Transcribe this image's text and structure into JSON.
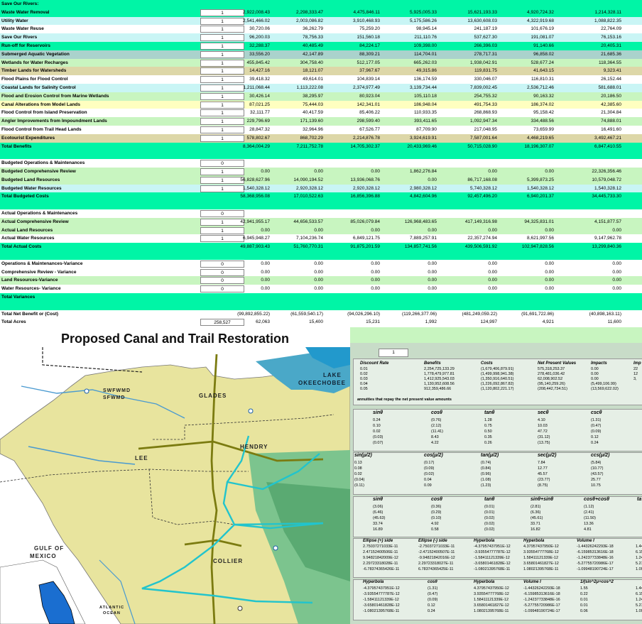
{
  "sheet": {
    "rows": [
      {
        "label": "Save Our Rivers:",
        "flag": "",
        "v": [
          "",
          "",
          "",
          "",
          "",
          "",
          ""
        ],
        "bg": "bg-green"
      },
      {
        "label": "Waste Water Removal",
        "flag": "1",
        "v": [
          "2,922,008.43",
          "2,298,333.47",
          "4,475,846.11",
          "5,925,005.33",
          "15,621,193.33",
          "4,920,724.32",
          "1,214,328.11"
        ],
        "bg": "bg-green"
      },
      {
        "label": "Utility Water",
        "flag": "1",
        "v": [
          "2,541,466.02",
          "2,003,086.82",
          "3,910,468.93",
          "5,175,586.26",
          "13,630,608.03",
          "4,322,919.68",
          "1,088,822.35"
        ],
        "bg": "bg-cyan"
      },
      {
        "label": "Waste Water Reuse",
        "flag": "1",
        "v": [
          "30,720.06",
          "36,262.79",
          "75,259.20",
          "98,945.14",
          "241,187.19",
          "101,676.19",
          "22,764.09"
        ],
        "bg": "bg-white"
      },
      {
        "label": "Save Our Rivers",
        "flag": "1",
        "v": [
          "96,200.03",
          "78,756.33",
          "151,560.18",
          "211,110.76",
          "537,627.30",
          "191,081.07",
          "76,153.16"
        ],
        "bg": "bg-cyan"
      },
      {
        "label": "Run-off for Reservoirs",
        "flag": "1",
        "v": [
          "32,288.37",
          "40,485.49",
          "84,224.17",
          "109,398.00",
          "266,396.03",
          "91,140.66",
          "20,405.31"
        ],
        "bg": "bg-green"
      },
      {
        "label": "Submerged Aquatic Vegetation",
        "flag": "1",
        "v": [
          "33,556.20",
          "42,147.89",
          "88,309.21",
          "114,704.01",
          "278,717.31",
          "96,858.02",
          "21,685.36"
        ],
        "bg": "bg-teal"
      },
      {
        "label": "Wetlands for Water Recharges",
        "flag": "1",
        "v": [
          "455,845.42",
          "304,758.40",
          "512,177.05",
          "665,262.03",
          "1,938,042.91",
          "528,677.24",
          "118,364.55"
        ],
        "bg": "bg-lgreen"
      },
      {
        "label": "Timber Lands for Watersheds",
        "flag": "1",
        "v": [
          "14,427.16",
          "18,121.07",
          "37,967.67",
          "49,315.86",
          "119,831.75",
          "41,643.15",
          "9,323.41"
        ],
        "bg": "bg-tan"
      },
      {
        "label": "Flood Plains for Flood Control",
        "flag": "1",
        "v": [
          "39,418.32",
          "49,614.01",
          "104,839.14",
          "136,174.59",
          "330,046.07",
          "116,810.31",
          "26,152.44"
        ],
        "bg": "bg-white"
      },
      {
        "label": "Coastal Lands for Salinity Control",
        "flag": "1",
        "v": [
          "1,211,068.44",
          "1,113,222.08",
          "2,374,977.49",
          "3,139,734.44",
          "7,839,002.45",
          "2,536,712.46",
          "581,688.01"
        ],
        "bg": "bg-cyan"
      },
      {
        "label": "Flood and Erosion Control from Marine Wetlands",
        "flag": "1",
        "v": [
          "30,426.14",
          "38,295.97",
          "80,923.04",
          "105,110.18",
          "254,755.32",
          "90,163.32",
          "20,186.50"
        ],
        "bg": "bg-lgreen"
      },
      {
        "label": "Canal Alterations from Model Lands",
        "flag": "1",
        "v": [
          "87,021.25",
          "75,444.03",
          "142,341.01",
          "186,948.04",
          "491,754.33",
          "186,374.02",
          "42,385.60"
        ],
        "bg": "bg-yellow"
      },
      {
        "label": "Flood Control from Island Preservation",
        "flag": "1",
        "v": [
          "32,111.77",
          "40,417.59",
          "85,406.22",
          "110,933.35",
          "268,868.93",
          "95,158.42",
          "21,304.84"
        ],
        "bg": "bg-white"
      },
      {
        "label": "Angler Improvements from Impoundment Lands",
        "flag": "1",
        "v": [
          "229,796.69",
          "171,139.60",
          "298,599.40",
          "393,411.65",
          "1,092,947.34",
          "334,488.56",
          "74,888.01"
        ],
        "bg": "bg-lgreen"
      },
      {
        "label": "Flood Control from Trail Head Lands",
        "flag": "1",
        "v": [
          "28,847.32",
          "32,964.96",
          "67,526.77",
          "87,709.90",
          "217,048.95",
          "73,659.99",
          "16,491.60"
        ],
        "bg": "bg-white"
      },
      {
        "label": "Ecotourist Expenditures",
        "flag": "1",
        "v": [
          "578,802.67",
          "868,702.29",
          "2,214,876.78",
          "3,924,619.91",
          "7,587,001.64",
          "4,468,219.65",
          "3,492,467.21"
        ],
        "bg": "bg-tan"
      },
      {
        "label": "Total Benefits",
        "flag": "",
        "v": [
          "8,364,004.29",
          "7,211,752.78",
          "14,705,302.37",
          "20,433,969.46",
          "50,715,028.90",
          "18,196,307.07",
          "6,847,410.55"
        ],
        "bg": "bg-green"
      },
      {
        "label": "",
        "flag": "",
        "v": [
          "",
          "",
          "",
          "",
          "",
          "",
          ""
        ],
        "bg": "bg-green"
      },
      {
        "label": "Budgeted Operations & Maintenances",
        "flag": "0",
        "v": [
          "",
          "",
          "",
          "",
          "",
          "",
          ""
        ],
        "bg": "bg-white"
      },
      {
        "label": "Budgeted Comprehensive Review",
        "flag": "1",
        "v": [
          "0.00",
          "0.00",
          "0.00",
          "1,862,276.84",
          "0.00",
          "0.00",
          "22,326,356.46"
        ],
        "bg": "bg-lgreen"
      },
      {
        "label": "Budgeted Land Resources",
        "flag": "1",
        "v": [
          "56,828,627.96",
          "14,090,194.52",
          "13,936,068.76",
          "0.00",
          "86,717,168.08",
          "5,399,873.25",
          "10,579,048.72"
        ],
        "bg": "bg-lgreen"
      },
      {
        "label": "Budgeted Water Resources",
        "flag": "1",
        "v": [
          "1,540,328.12",
          "2,920,328.12",
          "2,920,328.12",
          "2,980,328.12",
          "5,740,328.12",
          "1,540,328.12",
          "1,540,328.12"
        ],
        "bg": "bg-cyan"
      },
      {
        "label": "Total Budgeted Costs",
        "flag": "",
        "v": [
          "58,368,956.08",
          "17,010,522.63",
          "16,856,396.88",
          "4,842,604.96",
          "92,457,496.20",
          "6,940,201.37",
          "34,445,733.30"
        ],
        "bg": "bg-green"
      },
      {
        "label": "",
        "flag": "",
        "v": [
          "",
          "",
          "",
          "",
          "",
          "",
          ""
        ],
        "bg": "bg-green"
      },
      {
        "label": "Actual Operations & Maintenances",
        "flag": "0",
        "v": [
          "",
          "",
          "",
          "",
          "",
          "",
          ""
        ],
        "bg": "bg-white"
      },
      {
        "label": "Actual Comprehensive Review",
        "flag": "1",
        "v": [
          "42,941,955.17",
          "44,656,533.57",
          "85,026,079.84",
          "126,968,483.65",
          "417,149,316.98",
          "94,325,831.01",
          "4,151,877.57"
        ],
        "bg": "bg-lgreen"
      },
      {
        "label": "Actual Land Resources",
        "flag": "1",
        "v": [
          "0.00",
          "0.00",
          "0.00",
          "0.00",
          "0.00",
          "0.00",
          "0.00"
        ],
        "bg": "bg-lgreen"
      },
      {
        "label": "Actual Water Resources",
        "flag": "1",
        "v": [
          "6,945,948.27",
          "7,104,236.74",
          "6,849,121.75",
          "7,889,257.91",
          "22,357,274.94",
          "8,621,997.56",
          "9,147,962.78"
        ],
        "bg": "bg-white"
      },
      {
        "label": "Total Actual Costs",
        "flag": "",
        "v": [
          "49,887,903.43",
          "51,760,770.31",
          "91,875,201.59",
          "134,857,741.56",
          "439,506,591.92",
          "102,947,828.56",
          "13,299,840.36"
        ],
        "bg": "bg-green"
      },
      {
        "label": "",
        "flag": "",
        "v": [
          "",
          "",
          "",
          "",
          "",
          "",
          ""
        ],
        "bg": "bg-green"
      },
      {
        "label": "Operations & Maintenances-Variance",
        "flag": "0",
        "v": [
          "0.00",
          "0.00",
          "0.00",
          "0.00",
          "0.00",
          "0.00",
          "0.00"
        ],
        "bg": "bg-white"
      },
      {
        "label": "Comprehensive Review - Variance",
        "flag": "0",
        "v": [
          "0.00",
          "0.00",
          "0.00",
          "0.00",
          "0.00",
          "0.00",
          "0.00"
        ],
        "bg": "bg-white"
      },
      {
        "label": "Land Resources-Variance",
        "flag": "0",
        "v": [
          "0.00",
          "0.00",
          "0.00",
          "0.00",
          "0.00",
          "0.00",
          "0.00"
        ],
        "bg": "bg-lgreen"
      },
      {
        "label": "Water Resources- Variance",
        "flag": "0",
        "v": [
          "0.00",
          "0.00",
          "0.00",
          "0.00",
          "0.00",
          "0.00",
          "0.00"
        ],
        "bg": "bg-white"
      },
      {
        "label": "Total Variances",
        "flag": "",
        "v": [
          "",
          "",
          "",
          "",
          "",
          "",
          ""
        ],
        "bg": "bg-green"
      },
      {
        "label": "",
        "flag": "",
        "v": [
          "",
          "",
          "",
          "",
          "",
          "",
          ""
        ],
        "bg": "bg-green"
      },
      {
        "label": "Total Net Benefit or (Cost)",
        "flag": "",
        "v": [
          "(99,892,855.22)",
          "(61,559,540.17)",
          "(94,026,296.10)",
          "(119,266,377.06)",
          "(481,249,059.22)",
          "(91,691,722.86)",
          "(40,898,163.11)"
        ],
        "bg": "bg-white"
      },
      {
        "label": "Total Acres",
        "flag": "258,527",
        "v": [
          "62,063",
          "15,400",
          "15,231",
          "1,992",
          "124,997",
          "4,921",
          "11,600"
        ],
        "bg": "bg-white"
      }
    ]
  },
  "map": {
    "title": "Proposed Canal and Trail Restoration",
    "labels": {
      "lake": "LAKE",
      "okeechobee": "OKEECHOBEE",
      "swfwmd1": "SWFWMD",
      "swfwmd2": "SFWMD",
      "glades": "GLADES",
      "hendry": "HENDRY",
      "lee": "LEE",
      "collier": "COLLIER",
      "gulf": "GULF OF",
      "mexico": "MEXICO",
      "atlantic": "ATLANTIC",
      "ocean": "OCEAN"
    }
  },
  "calc": {
    "input_value": "1",
    "npv_headers": [
      "Discount Rate",
      "Benefits",
      "Costs",
      "Net Present Values",
      "Impacts",
      "Imp"
    ],
    "npv_rows": [
      [
        "0.01",
        "2,254,725,133.29",
        "(1,679,406,879.91)",
        "575,318,253.37",
        "0.00",
        "22"
      ],
      [
        "0.02",
        "1,778,479,977.81",
        "(1,499,998,941.38)",
        "278,481,036.42",
        "0.00",
        "12"
      ],
      [
        "0.03",
        "1,412,925,543.03",
        "(1,350,916,640.51)",
        "62,008,902.52",
        "0.00",
        "3,"
      ],
      [
        "0.04",
        "1,130,952,608.56",
        "(1,226,092,867.82)",
        "(95,140,259.26)",
        "(5,499,106.99)",
        ""
      ],
      [
        "0.05",
        "912,359,486.66",
        "(1,120,802,221.17)",
        "(208,442,734.51)",
        "(13,569,622.02)",
        ""
      ]
    ],
    "annuity_note": "annuities that repay the net present value amounts",
    "trig1_headers": [
      "sinθ",
      "cosθ",
      "tanθ",
      "secθ",
      "cscθ"
    ],
    "trig1_rows": [
      [
        "0.24",
        "(0.76)",
        "1.28",
        "4.10",
        "(1.31)"
      ],
      [
        "0.10",
        "(2.12)",
        "0.75",
        "10.03",
        "(0.47)"
      ],
      [
        "0.02",
        "(11.41)",
        "0.50",
        "47.72",
        "(0.09)"
      ],
      [
        "(0.03)",
        "8.43",
        "0.35",
        "(31.12)",
        "0.12"
      ],
      [
        "(0.07)",
        "4.22",
        "0.26",
        "(13.75)",
        "0.24"
      ]
    ],
    "trig2_headers": [
      "sin(μ/2)",
      "cos(μ/2)",
      "tan(μ/2)",
      "sec(μ/2)",
      "ccs(μ/2)"
    ],
    "trig2_rows": [
      [
        "0.13",
        "(0.17)",
        "(0.74)",
        "7.84",
        "(5.84)"
      ],
      [
        "0.08",
        "(0.09)",
        "(0.84)",
        "12.77",
        "(10.77)"
      ],
      [
        "0.02",
        "(0.02)",
        "(0.96)",
        "45.57",
        "(43.57)"
      ],
      [
        "(0.04)",
        "0.04",
        "(1.08)",
        "(23.77)",
        "25.77"
      ],
      [
        "(0.11)",
        "0.09",
        "(1.23)",
        "(8.75)",
        "10.75"
      ]
    ],
    "trig3_headers": [
      "sinθ",
      "cosθ",
      "tanθ",
      "sinθ+sinθ",
      "cosθ+cosθ",
      "ta"
    ],
    "trig3_rows": [
      [
        "(3.06)",
        "(0.36)",
        "(0.01)",
        "(2.81)",
        "(1.12)"
      ],
      [
        "(6.46)",
        "(0.29)",
        "(0.01)",
        "(6.36)",
        "(2.41)"
      ],
      [
        "(45.63)",
        "(0.10)",
        "(0.02)",
        "(45.61)",
        "(11.50)"
      ],
      [
        "33.74",
        "4.92",
        "(0.02)",
        "33.71",
        "13.36"
      ],
      [
        "16.89",
        "0.58",
        "(0.02)",
        "16.82",
        "4.81"
      ]
    ],
    "ell_headers": [
      "Ellipse (+) side",
      "Ellipse (-) side",
      "Hyperbola",
      "Hyperbola",
      "Volume I"
    ],
    "ell_rows": [
      [
        "2.75037271033E-11",
        "-2.75037271033E-11",
        "-4.37957437951E-12",
        "4.37957437950E-12",
        "-1.44326242293E-18",
        "1.443"
      ],
      [
        "2.47152400506E-11",
        "-2.47152400507E-11",
        "-3.93554777787E-12",
        "3.93554777768E-12",
        "-6.15985313616E-18",
        "6.159"
      ],
      [
        "9.94821842009E-12",
        "-9.94821842016E-12",
        "-1.58411121339E-12",
        "1.58411121339E-12",
        "-1.24237733848E-16",
        "1.242"
      ],
      [
        "2.29723318028E-11",
        "2.29723318027E-11",
        "-3.65801461828E-12",
        "3.65801461827E-12",
        "-5.27755720986E-17",
        "5.277"
      ],
      [
        "-6.78374365426E-11",
        "6.78374365425E-11",
        "-1.08021395768E-11",
        "1.08021395768E-11",
        "-1.09948190724E-17",
        "1.09"
      ]
    ],
    "hyp_headers": [
      "Hyperbola",
      "cosθ",
      "Hyperbola",
      "Volume I",
      "1/(sin^2μ+cos^2"
    ],
    "hyp_rows": [
      [
        "-4.37957437951E-12",
        "(1.31)",
        "4.37957437950E-12",
        "-1.44326242293E-18",
        "1.55",
        "1.443"
      ],
      [
        "-3.93554777787E-12",
        "(0.47)",
        "3.93554777768E-12",
        "-6.15985313616E-18",
        "0.22",
        "6.159"
      ],
      [
        "-1.58411121339E-12",
        "(0.09)",
        "1.58411121339E-12",
        "-1.24237733848E-16",
        "0.01",
        "1.242"
      ],
      [
        "-3.65801461828E-12",
        "0.12",
        "3.65801461827E-12",
        "-5.27755720986E-17",
        "0.01",
        "5.277"
      ],
      [
        "-1.08021395768E-11",
        "0.24",
        "1.08021395768E-11",
        "-1.09948190724E-17",
        "0.06",
        "1.09"
      ]
    ]
  }
}
